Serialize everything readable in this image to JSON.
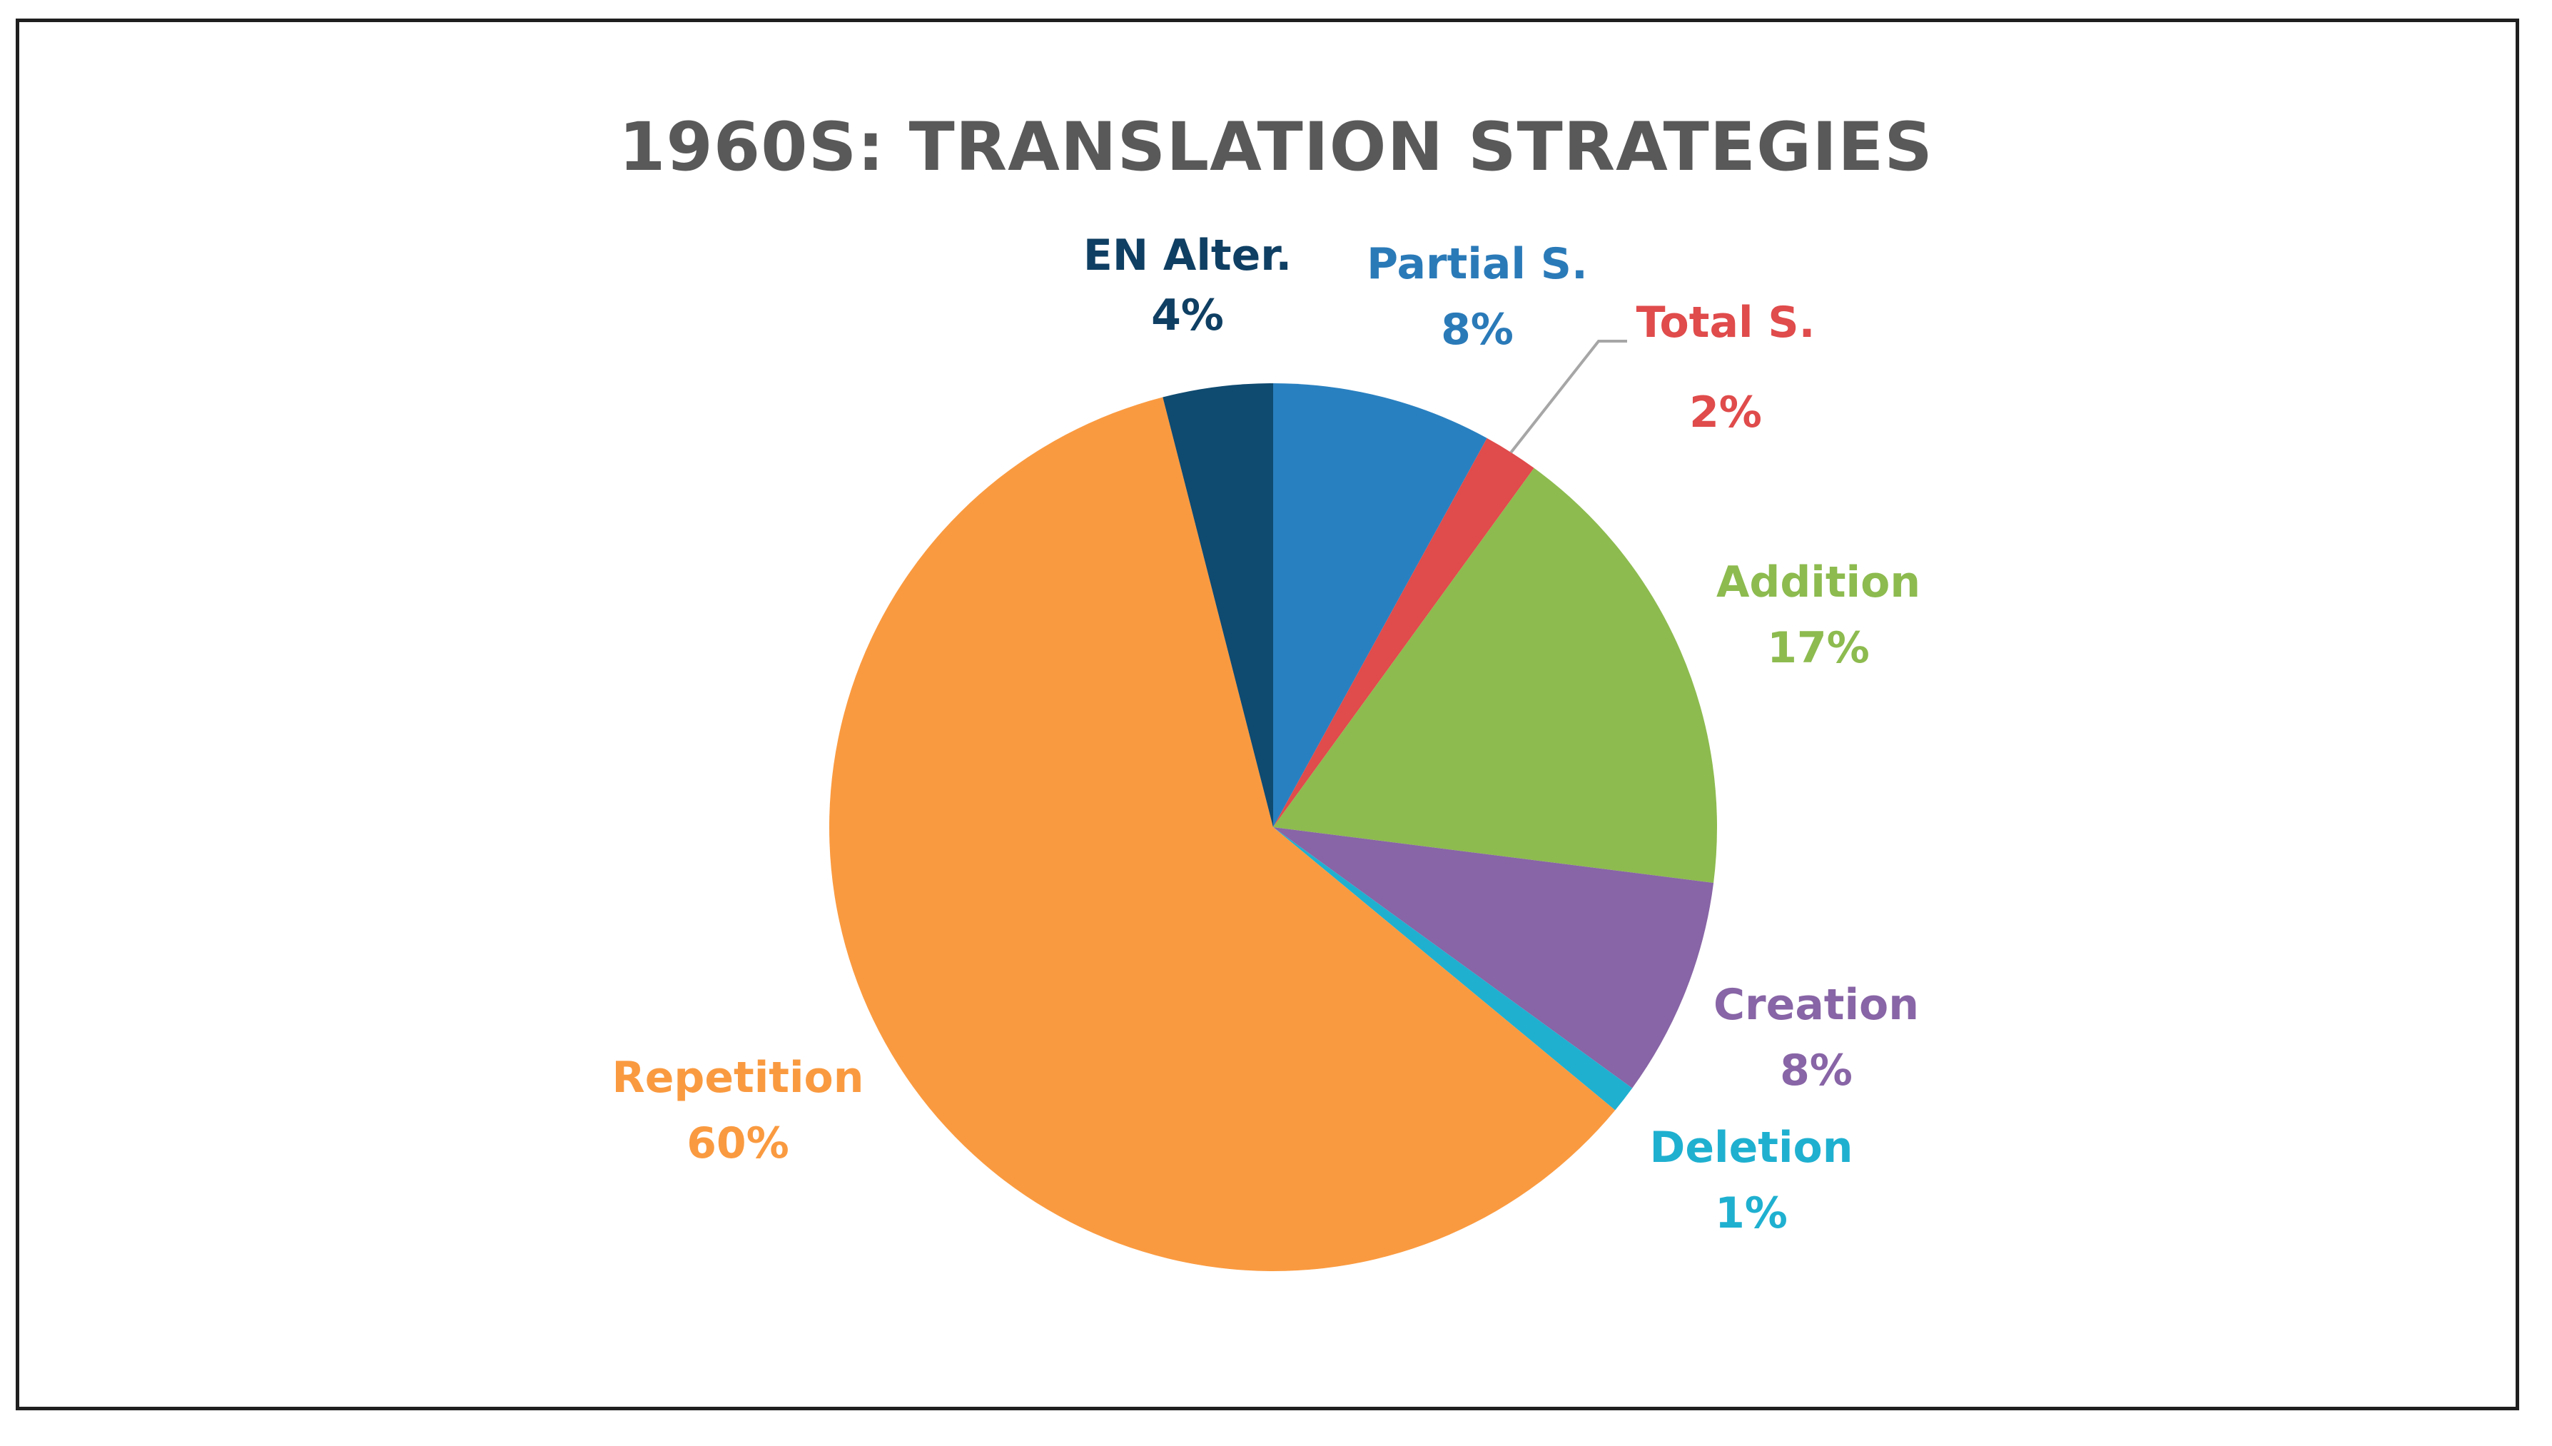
{
  "chart_data": {
    "type": "pie",
    "title": "1960S: TRANSLATION STRATEGIES",
    "slices": [
      {
        "label": "Partial S.",
        "value": 8,
        "value_label": "8%",
        "color": "#2980c0"
      },
      {
        "label": "Total S.",
        "value": 2,
        "value_label": "2%",
        "color": "#e04b4b"
      },
      {
        "label": "Addition",
        "value": 17,
        "value_label": "17%",
        "color": "#8dbb4f"
      },
      {
        "label": "Creation",
        "value": 8,
        "value_label": "8%",
        "color": "#8865a6"
      },
      {
        "label": "Deletion",
        "value": 1,
        "value_label": "1%",
        "color": "#1fb0d0"
      },
      {
        "label": "Repetition",
        "value": 60,
        "value_label": "60%",
        "color": "#fa9a40"
      },
      {
        "label": "EN Alter.",
        "value": 4,
        "value_label": "4%",
        "color": "#0f4a70"
      }
    ],
    "label_colors": {
      "Partial S.": "#2a7ab8",
      "Total S.": "#e04b4b",
      "Addition": "#8dbb4f",
      "Creation": "#8865a6",
      "Deletion": "#1fb0d0",
      "Repetition": "#fa9a40",
      "EN Alter.": "#0f3f63"
    },
    "start": "12 o'clock",
    "direction": "clockwise",
    "legend": "none (data labels)"
  }
}
